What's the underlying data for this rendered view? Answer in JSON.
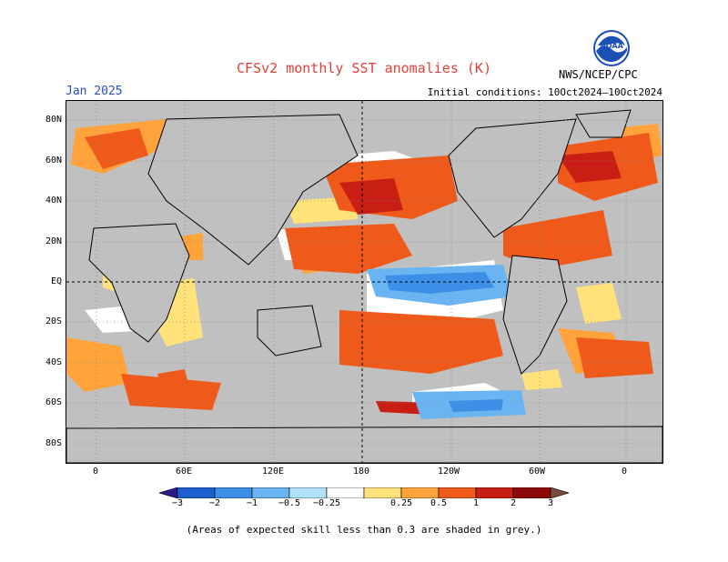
{
  "title": "CFSv2 monthly SST anomalies (K)",
  "month": "Jan 2025",
  "initial_conditions": "Initial conditions: 10Oct2024–10Oct2024",
  "agency": "NWS/NCEP/CPC",
  "logo": {
    "text": "NOAA",
    "icon": "noaa-logo"
  },
  "lat_labels": [
    "80N",
    "60N",
    "40N",
    "20N",
    "EQ",
    "20S",
    "40S",
    "60S",
    "80S"
  ],
  "lon_labels": [
    "0",
    "60E",
    "120E",
    "180",
    "120W",
    "60W",
    "0"
  ],
  "colorbar": {
    "labels": [
      "−3",
      "−2",
      "−1",
      "−0.5",
      "−0.25",
      "0.25",
      "0.5",
      "1",
      "2",
      "3"
    ],
    "colors": [
      "#2a1a8a",
      "#1e5fcf",
      "#3b8fe6",
      "#6ab4f2",
      "#b0e2fb",
      "#ffffff",
      "#ffe27a",
      "#ffa33a",
      "#ef5a1a",
      "#c81e14",
      "#8e0a08",
      "#7a4a3a"
    ]
  },
  "footnote": "(Areas of expected skill less than 0.3 are shaded in grey.)"
}
